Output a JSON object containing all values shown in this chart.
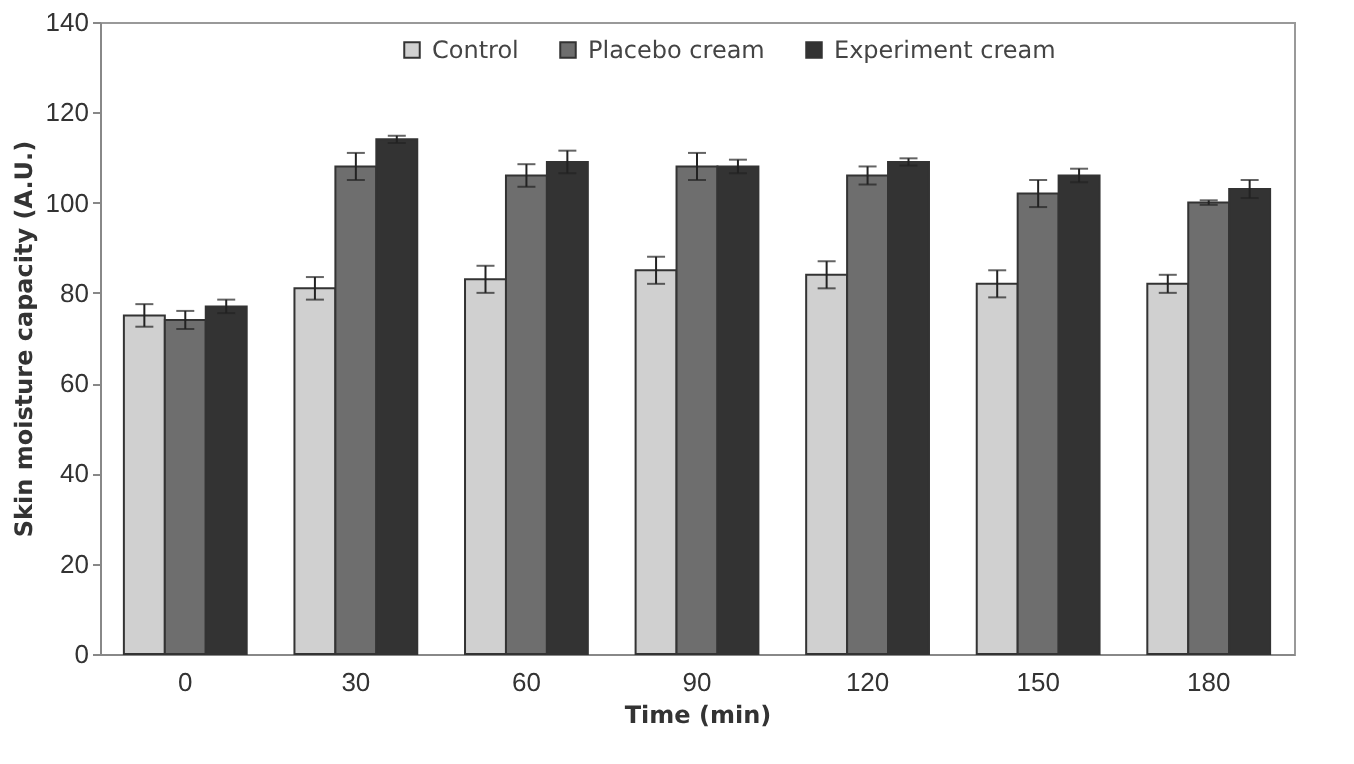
{
  "chart_data": {
    "type": "bar",
    "xlabel": "Time (min)",
    "ylabel": "Skin moisture capacity (A.U.)",
    "categories": [
      "0",
      "30",
      "60",
      "90",
      "120",
      "150",
      "180"
    ],
    "series": [
      {
        "name": "Control",
        "color": "#d0d0d0",
        "values": [
          75,
          81,
          83,
          85,
          84,
          82,
          82
        ],
        "errors": [
          2.5,
          2.5,
          3,
          3,
          3,
          3,
          2
        ]
      },
      {
        "name": "Placebo cream",
        "color": "#6e6e6e",
        "values": [
          74,
          108,
          106,
          108,
          106,
          102,
          100
        ],
        "errors": [
          2,
          3,
          2.5,
          3,
          2,
          3,
          0.5
        ]
      },
      {
        "name": "Experiment cream",
        "color": "#333333",
        "values": [
          77,
          114,
          109,
          108,
          109,
          106,
          103
        ],
        "errors": [
          1.5,
          0.8,
          2.5,
          1.5,
          0.8,
          1.5,
          2
        ]
      }
    ],
    "ylim": [
      0,
      140
    ],
    "yticks": [
      0,
      20,
      40,
      60,
      80,
      100,
      120,
      140
    ],
    "grid": false,
    "legend": "top"
  }
}
